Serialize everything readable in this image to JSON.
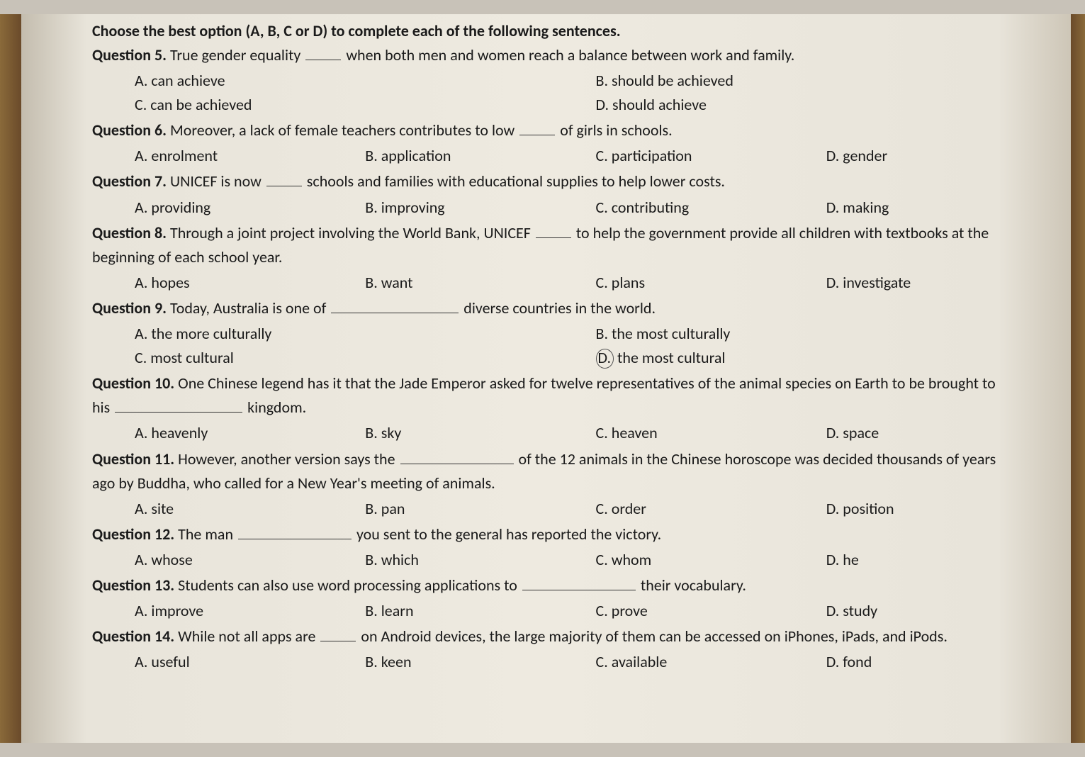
{
  "instruction": "Choose the best option (A, B, C or D) to complete each of the following sentences.",
  "questions": [
    {
      "num": "5",
      "pre": "True gender equality ",
      "post": " when both men and women reach a balance between work and family.",
      "blankClass": "blank",
      "layout": "two-two",
      "indent": true,
      "opts": {
        "A": "can achieve",
        "B": "should be achieved",
        "C": "can be achieved",
        "D": "should achieve"
      }
    },
    {
      "num": "6",
      "pre": "Moreover, a lack of female teachers contributes to low ",
      "post": " of girls in schools.",
      "blankClass": "blank",
      "layout": "four",
      "indent": true,
      "opts": {
        "A": "enrolment",
        "B": "application",
        "C": "participation",
        "D": "gender"
      }
    },
    {
      "num": "7",
      "pre": "UNICEF is now ",
      "post": " schools and families with educational supplies to help lower costs.",
      "blankClass": "blank",
      "layout": "four",
      "indent": true,
      "opts": {
        "A": "providing",
        "B": "improving",
        "C": "contributing",
        "D": "making"
      }
    },
    {
      "num": "8",
      "pre": "Through a joint project involving the World Bank, UNICEF ",
      "post": " to help the government provide all children with textbooks at the beginning of each school year.",
      "blankClass": "blank",
      "layout": "four",
      "indent": true,
      "opts": {
        "A": "hopes",
        "B": "want",
        "C": "plans",
        "D": "investigate"
      }
    },
    {
      "num": "9",
      "pre": "Today, Australia is one of ",
      "post": " diverse countries in the world.",
      "blankClass": "blank long",
      "layout": "two-two",
      "indent": true,
      "circled": "D",
      "opts": {
        "A": "the more culturally",
        "B": "the most culturally",
        "C": "most cultural",
        "D": "the most cultural"
      }
    },
    {
      "num": "10",
      "pre": "One Chinese legend has it that the Jade Emperor asked for twelve representatives of the animal species on Earth to be brought to his ",
      "post": " kingdom.",
      "blankClass": "blank long",
      "layout": "four",
      "indent": false,
      "opts": {
        "A": "heavenly",
        "B": "sky",
        "C": "heaven",
        "D": "space"
      }
    },
    {
      "num": "11",
      "pre": "However, another version says the ",
      "post": " of the 12 animals in the Chinese horoscope was decided thousands of years ago by Buddha, who called for a New Year's meeting of animals.",
      "blankClass": "blank xlong",
      "layout": "four",
      "indent": false,
      "opts": {
        "A": "site",
        "B": "pan",
        "C": "order",
        "D": "position"
      }
    },
    {
      "num": "12",
      "pre": "The man ",
      "post": " you sent to the general has reported the victory.",
      "blankClass": "blank xlong",
      "layout": "four",
      "indent": false,
      "opts": {
        "A": "whose",
        "B": "which",
        "C": "whom",
        "D": "he"
      }
    },
    {
      "num": "13",
      "pre": "Students can also use word processing applications to ",
      "post": " their vocabulary.",
      "blankClass": "blank xlong",
      "layout": "four",
      "indent": false,
      "opts": {
        "A": "improve",
        "B": "learn",
        "C": "prove",
        "D": "study"
      }
    },
    {
      "num": "14",
      "pre": "While not all apps are ",
      "post": " on Android devices, the large majority of them can be accessed on iPhones, iPads, and iPods.",
      "blankClass": "blank",
      "layout": "four",
      "indent": false,
      "opts": {
        "A": "useful",
        "B": "keen",
        "C": "available",
        "D": "fond"
      }
    }
  ],
  "labels": {
    "questionWord": "Question"
  }
}
